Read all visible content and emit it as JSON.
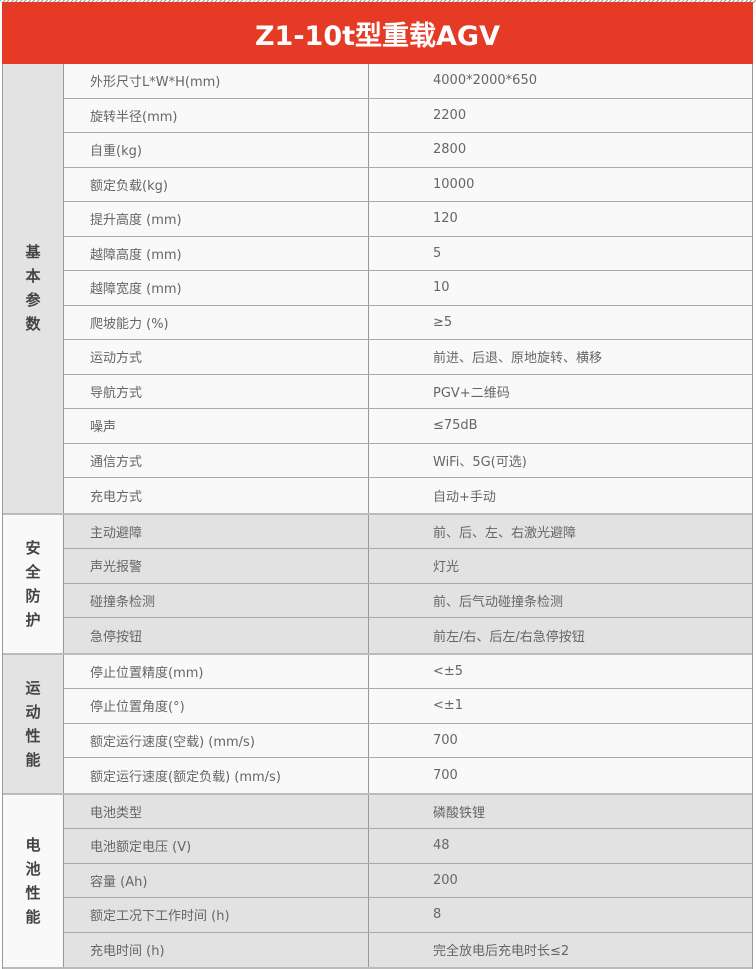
{
  "title": "Z1-10t型重载AGV",
  "sections": [
    {
      "label": "基本参数",
      "rows": [
        [
          "外形尺寸L*W*H(mm)",
          "4000*2000*650"
        ],
        [
          "旋转半径(mm)",
          "2200"
        ],
        [
          "自重(kg)",
          "2800"
        ],
        [
          "额定负载(kg)",
          "10000"
        ],
        [
          "提升高度 (mm)",
          "120"
        ],
        [
          "越障高度 (mm)",
          "5"
        ],
        [
          "越障宽度 (mm)",
          "10"
        ],
        [
          "爬坡能力 (%)",
          "≥5"
        ],
        [
          "运动方式",
          "前进、后退、原地旋转、横移"
        ],
        [
          "导航方式",
          "PGV+二维码"
        ],
        [
          "噪声",
          "≤75dB"
        ],
        [
          "通信方式",
          "WiFi、5G(可选)"
        ],
        [
          "充电方式",
          "自动+手动"
        ]
      ]
    },
    {
      "label": "安全防护",
      "rows": [
        [
          "主动避障",
          "前、后、左、右激光避障"
        ],
        [
          "声光报警",
          "灯光"
        ],
        [
          "碰撞条检测",
          "前、后气动碰撞条检测"
        ],
        [
          "急停按钮",
          "前左/右、后左/右急停按钮"
        ]
      ]
    },
    {
      "label": "运动性能",
      "rows": [
        [
          "停止位置精度(mm)",
          "<±5"
        ],
        [
          "停止位置角度(°)",
          "<±1"
        ],
        [
          "额定运行速度(空载) (mm/s)",
          "700"
        ],
        [
          "额定运行速度(额定负载) (mm/s)",
          "700"
        ]
      ]
    },
    {
      "label": "电池性能",
      "rows": [
        [
          "电池类型",
          "磷酸铁锂"
        ],
        [
          "电池额定电压 (V)",
          "48"
        ],
        [
          "容量 (Ah)",
          "200"
        ],
        [
          "额定工况下工作时间 (h)",
          "8"
        ],
        [
          "充电时间 (h)",
          "完全放电后充电时长≤2"
        ]
      ]
    }
  ]
}
